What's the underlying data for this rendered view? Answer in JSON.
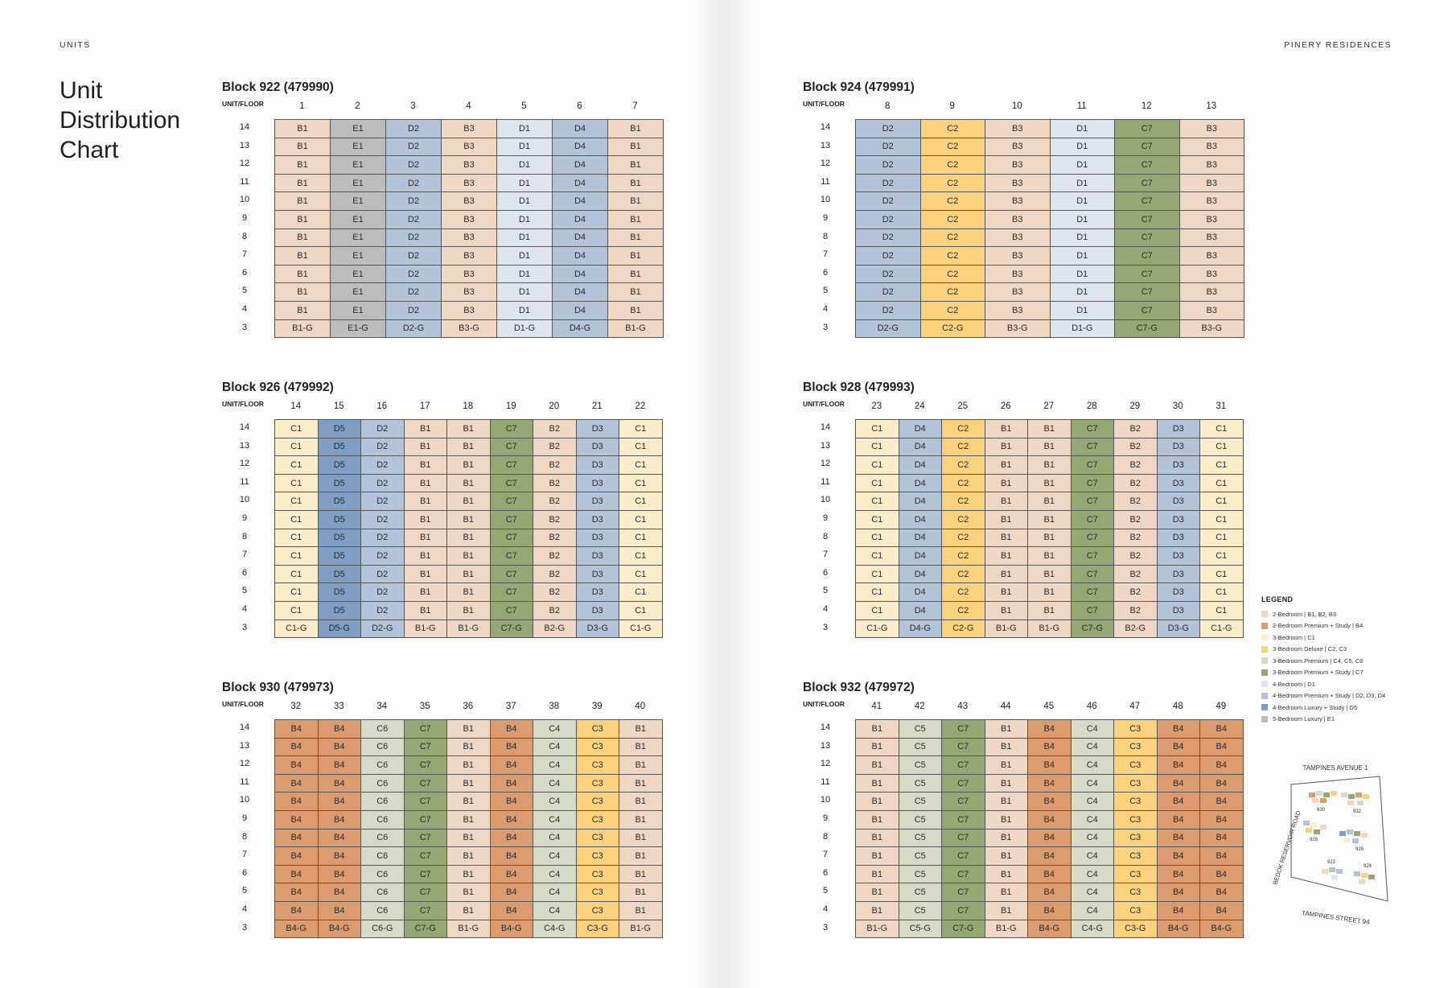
{
  "header": {
    "section": "UNITS",
    "project": "PINERY RESIDENCES"
  },
  "title": "Unit Distribution Chart",
  "unit_floor_label": "UNIT/FLOOR",
  "floors": [
    "14",
    "13",
    "12",
    "11",
    "10",
    "9",
    "8",
    "7",
    "6",
    "5",
    "4",
    "3"
  ],
  "colors": {
    "B1": "#f0d7c4",
    "B2": "#f0d7c4",
    "B3": "#f0d7c4",
    "B4": "#dc9c70",
    "C1": "#fdeecb",
    "C2": "#fcd27e",
    "C3": "#fcd27e",
    "C4": "#d6dbc7",
    "C5": "#d6dbc7",
    "C6": "#d6dbc7",
    "C7": "#93a874",
    "D1": "#dfe5ee",
    "D2": "#b3c4da",
    "D3": "#b3c4da",
    "D4": "#b3c4da",
    "D5": "#7e9ec4",
    "E1": "#bdbdbc"
  },
  "blocks": [
    {
      "id": "922",
      "title": "Block 922 (479990)",
      "units": [
        "1",
        "2",
        "3",
        "4",
        "5",
        "6",
        "7"
      ],
      "types": [
        "B1",
        "E1",
        "D2",
        "B3",
        "D1",
        "D4",
        "B1"
      ]
    },
    {
      "id": "924",
      "title": "Block 924 (479991)",
      "units": [
        "8",
        "9",
        "10",
        "11",
        "12",
        "13"
      ],
      "types": [
        "D2",
        "C2",
        "B3",
        "D1",
        "C7",
        "B3"
      ]
    },
    {
      "id": "926",
      "title": "Block 926 (479992)",
      "units": [
        "14",
        "15",
        "16",
        "17",
        "18",
        "19",
        "20",
        "21",
        "22"
      ],
      "types": [
        "C1",
        "D5",
        "D2",
        "B1",
        "B1",
        "C7",
        "B2",
        "D3",
        "C1"
      ]
    },
    {
      "id": "928",
      "title": "Block 928 (479993)",
      "units": [
        "23",
        "24",
        "25",
        "26",
        "27",
        "28",
        "29",
        "30",
        "31"
      ],
      "types": [
        "C1",
        "D4",
        "C2",
        "B1",
        "B1",
        "C7",
        "B2",
        "D3",
        "C1"
      ]
    },
    {
      "id": "930",
      "title": "Block 930 (479973)",
      "units": [
        "32",
        "33",
        "34",
        "35",
        "36",
        "37",
        "38",
        "39",
        "40"
      ],
      "types": [
        "B4",
        "B4",
        "C6",
        "C7",
        "B1",
        "B4",
        "C4",
        "C3",
        "B1"
      ]
    },
    {
      "id": "932",
      "title": "Block 932 (479972)",
      "units": [
        "41",
        "42",
        "43",
        "44",
        "45",
        "46",
        "47",
        "48",
        "49"
      ],
      "types": [
        "B1",
        "C5",
        "C7",
        "B1",
        "B4",
        "C4",
        "C3",
        "B4",
        "B4"
      ]
    }
  ],
  "legend": {
    "title": "LEGEND",
    "items": [
      {
        "label": "2-Bedroom | B1, B2, B3",
        "color": "#f0d7c4"
      },
      {
        "label": "2-Bedroom Premium + Study | B4",
        "color": "#dc9c70"
      },
      {
        "label": "3-Bedroom | C1",
        "color": "#fdeecb"
      },
      {
        "label": "3-Bedroom Deluxe | C2, C3",
        "color": "#fcd27e"
      },
      {
        "label": "3-Bedroom Premium | C4, C5, C6",
        "color": "#d6dbc7"
      },
      {
        "label": "3-Bedroom Premium + Study | C7",
        "color": "#93a874"
      },
      {
        "label": "4-Bedroom | D1",
        "color": "#dfe5ee"
      },
      {
        "label": "4-Bedroom Premium + Study | D2, D3, D4",
        "color": "#b3c4da"
      },
      {
        "label": "4-Bedroom Luxury + Study | D5",
        "color": "#7e9ec4"
      },
      {
        "label": "5-Bedroom Luxury | E1",
        "color": "#bdbdbc"
      }
    ]
  },
  "site_plan": {
    "road_top": "TAMPINES AVENUE 1",
    "road_left": "BEDOK RESERVOIR ROAD",
    "road_bottom": "TAMPINES STREET 94",
    "blocks": [
      "930",
      "932",
      "928",
      "926",
      "922",
      "924"
    ]
  }
}
